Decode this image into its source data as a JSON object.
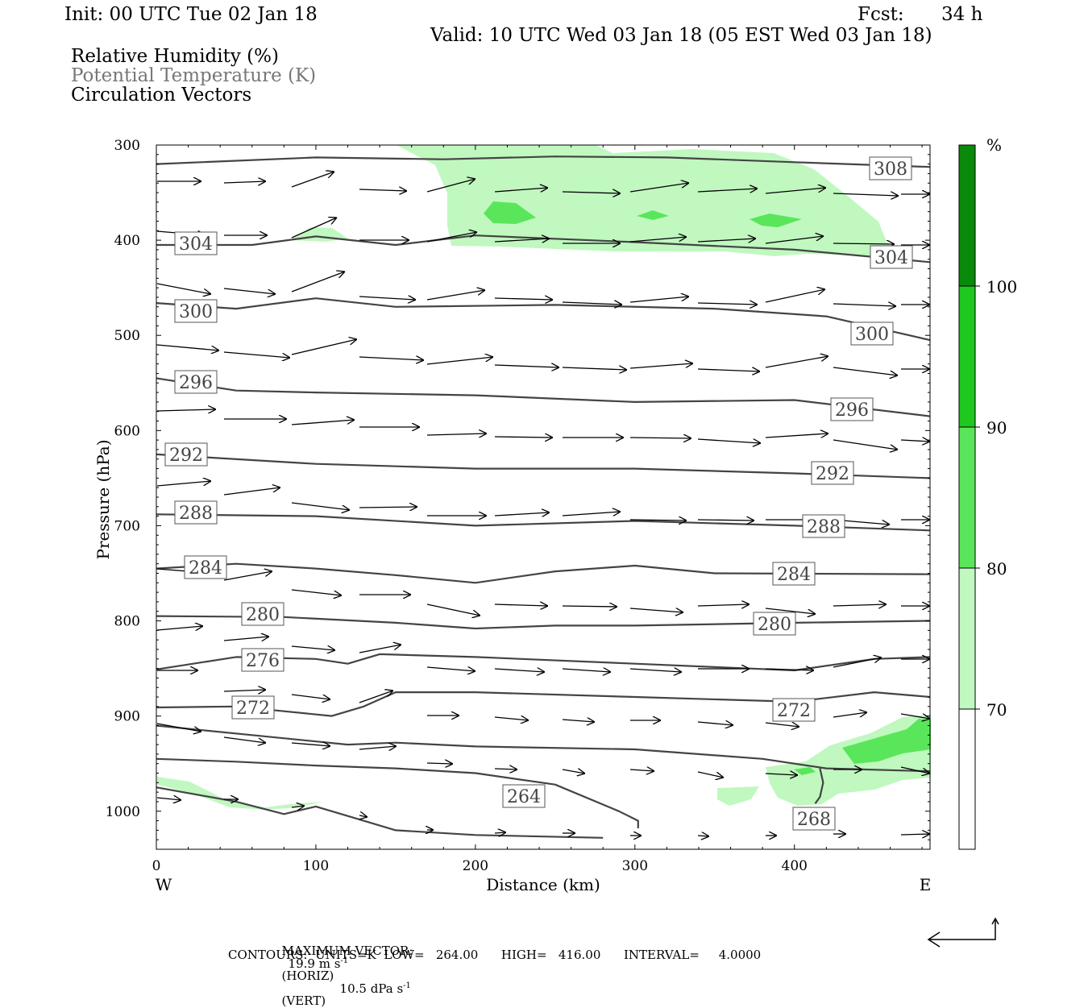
{
  "header": {
    "init": "Init: 00 UTC Tue 02 Jan 18",
    "fcst_label": "Fcst:",
    "fcst_value": "34 h",
    "valid": "Valid: 10 UTC Wed 03 Jan 18 (05 EST Wed 03 Jan 18)"
  },
  "legend_text": {
    "line1": "Relative Humidity (%)",
    "line2": "Potential Temperature (K)",
    "line3": "Circulation Vectors"
  },
  "chart_data": {
    "type": "cross-section",
    "xlabel": "Distance (km)",
    "ylabel": "Pressure (hPa)",
    "xlim": [
      0,
      485
    ],
    "ylim": [
      1040,
      300
    ],
    "x_ticks": [
      "0",
      "100",
      "200",
      "300",
      "400"
    ],
    "y_ticks": [
      "300",
      "400",
      "500",
      "600",
      "700",
      "800",
      "900",
      "1000"
    ],
    "x_end_labels": {
      "left": "W",
      "right": "E"
    },
    "colorbar": {
      "unit": "%",
      "levels": [
        "70",
        "80",
        "90",
        "100"
      ],
      "colors": [
        "#ffffff",
        "#c0f8c0",
        "#5ae65a",
        "#1ec81e",
        "#0a8a0a"
      ]
    },
    "theta_contours": [
      {
        "label": "308",
        "points": [
          [
            0,
            320
          ],
          [
            100,
            313
          ],
          [
            180,
            315
          ],
          [
            250,
            312
          ],
          [
            320,
            313
          ],
          [
            400,
            318
          ],
          [
            485,
            323
          ]
        ]
      },
      {
        "label": "304",
        "points": [
          [
            0,
            405
          ],
          [
            60,
            405
          ],
          [
            100,
            396
          ],
          [
            150,
            405
          ],
          [
            200,
            395
          ],
          [
            300,
            402
          ],
          [
            400,
            410
          ],
          [
            485,
            423
          ]
        ]
      },
      {
        "label": "300",
        "points": [
          [
            0,
            466
          ],
          [
            50,
            472
          ],
          [
            100,
            461
          ],
          [
            150,
            470
          ],
          [
            250,
            468
          ],
          [
            350,
            472
          ],
          [
            420,
            480
          ],
          [
            485,
            505
          ]
        ]
      },
      {
        "label": "296",
        "points": [
          [
            0,
            545
          ],
          [
            50,
            558
          ],
          [
            100,
            560
          ],
          [
            200,
            563
          ],
          [
            300,
            570
          ],
          [
            400,
            568
          ],
          [
            485,
            585
          ]
        ]
      },
      {
        "label": "292",
        "points": [
          [
            0,
            625
          ],
          [
            100,
            635
          ],
          [
            200,
            640
          ],
          [
            300,
            640
          ],
          [
            400,
            645
          ],
          [
            485,
            650
          ]
        ]
      },
      {
        "label": "288",
        "points": [
          [
            0,
            688
          ],
          [
            100,
            690
          ],
          [
            200,
            700
          ],
          [
            300,
            695
          ],
          [
            400,
            700
          ],
          [
            485,
            705
          ]
        ]
      },
      {
        "label": "284",
        "points": [
          [
            0,
            745
          ],
          [
            50,
            740
          ],
          [
            100,
            745
          ],
          [
            150,
            752
          ],
          [
            200,
            760
          ],
          [
            250,
            748
          ],
          [
            300,
            742
          ],
          [
            350,
            750
          ],
          [
            485,
            751
          ]
        ]
      },
      {
        "label": "280",
        "points": [
          [
            0,
            795
          ],
          [
            80,
            796
          ],
          [
            150,
            802
          ],
          [
            200,
            808
          ],
          [
            250,
            805
          ],
          [
            300,
            805
          ],
          [
            400,
            802
          ],
          [
            485,
            800
          ]
        ]
      },
      {
        "label": "276",
        "points": [
          [
            0,
            851
          ],
          [
            50,
            838
          ],
          [
            100,
            840
          ],
          [
            120,
            845
          ],
          [
            140,
            835
          ],
          [
            200,
            838
          ],
          [
            300,
            845
          ],
          [
            400,
            852
          ],
          [
            450,
            840
          ],
          [
            485,
            838
          ]
        ]
      },
      {
        "label": "272",
        "points": [
          [
            0,
            891
          ],
          [
            50,
            890
          ],
          [
            80,
            895
          ],
          [
            110,
            900
          ],
          [
            130,
            890
          ],
          [
            150,
            875
          ],
          [
            200,
            875
          ],
          [
            300,
            880
          ],
          [
            400,
            885
          ],
          [
            450,
            875
          ],
          [
            485,
            880
          ]
        ]
      },
      {
        "label": "",
        "points": [
          [
            0,
            910
          ],
          [
            60,
            920
          ],
          [
            120,
            930
          ],
          [
            150,
            928
          ],
          [
            200,
            932
          ],
          [
            300,
            935
          ],
          [
            380,
            945
          ],
          [
            420,
            955
          ],
          [
            485,
            958
          ]
        ]
      },
      {
        "label": "",
        "points": [
          [
            0,
            945
          ],
          [
            50,
            948
          ],
          [
            100,
            952
          ],
          [
            150,
            955
          ],
          [
            200,
            960
          ],
          [
            250,
            972
          ],
          [
            290,
            1000
          ],
          [
            302,
            1010
          ],
          [
            302,
            1018
          ]
        ]
      },
      {
        "label": "264",
        "points": [
          [
            0,
            975
          ],
          [
            50,
            990
          ],
          [
            80,
            1003
          ],
          [
            100,
            995
          ],
          [
            120,
            1005
          ],
          [
            150,
            1020
          ],
          [
            200,
            1025
          ],
          [
            280,
            1028
          ]
        ]
      },
      {
        "label": "268",
        "points": [
          [
            416,
            955
          ],
          [
            418,
            970
          ],
          [
            416,
            985
          ],
          [
            413,
            992
          ]
        ]
      }
    ],
    "footer": {
      "max_vector_label": "MAXIMUM VECTOR:",
      "max_vector_horiz": "19.9 m s",
      "horiz_suffix": "(HORIZ)",
      "max_vector_vert": "10.5 dPa s",
      "vert_suffix": "(VERT)",
      "exponent": "-1",
      "contours": "CONTOURS:  UNITS=K  LOW=   264.00      HIGH=   416.00      INTERVAL=     4.0000"
    }
  }
}
